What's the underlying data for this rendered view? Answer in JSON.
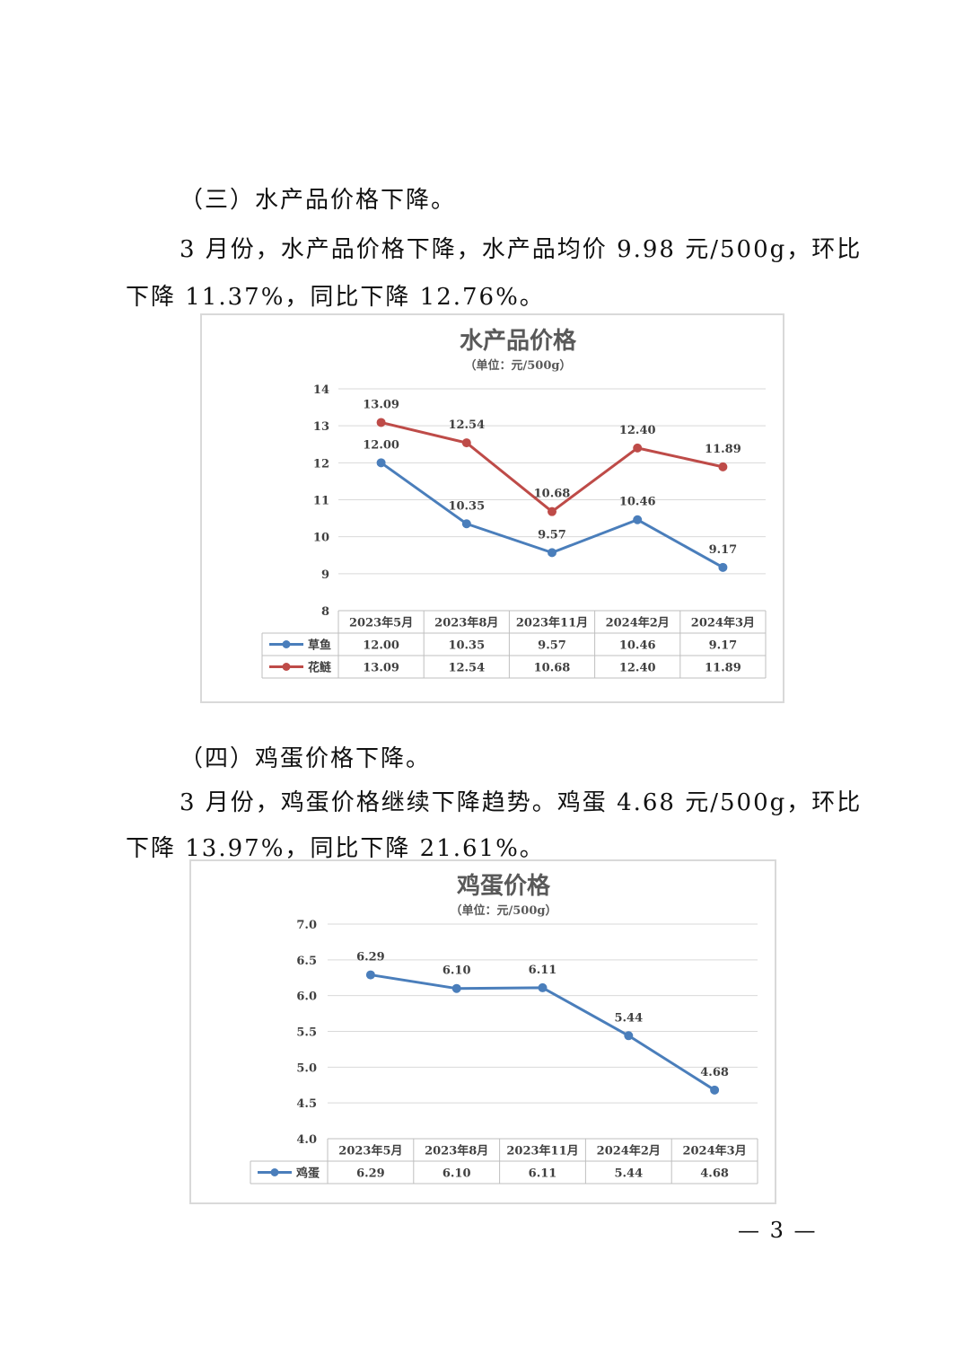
{
  "section3": {
    "heading": "（三）水产品价格下降。",
    "line1": "3 月份，水产品价格下降，水产品均价 9.98 元/500g，环比",
    "line2": "下降 11.37%，同比下降 12.76%。"
  },
  "section4": {
    "heading": "（四）鸡蛋价格下降。",
    "line1": "3 月份，鸡蛋价格继续下降趋势。鸡蛋 4.68 元/500g，环比",
    "line2": "下降 13.97%，同比下降 21.61%。"
  },
  "page_number": "— 3 —",
  "chart_data": [
    {
      "type": "line",
      "title": "水产品价格",
      "subtitle": "（单位：元/500g）",
      "categories": [
        "2023年5月",
        "2023年8月",
        "2023年11月",
        "2024年2月",
        "2024年3月"
      ],
      "ylim": [
        8,
        14
      ],
      "yticks": [
        "8",
        "9",
        "10",
        "11",
        "12",
        "13",
        "14"
      ],
      "grid": true,
      "legend": "data-table",
      "series": [
        {
          "name": "草鱼",
          "color": "#4a7ebb",
          "values": [
            12.0,
            10.35,
            9.57,
            10.46,
            9.17
          ],
          "labels": [
            "12.00",
            "10.35",
            "9.57",
            "10.46",
            "9.17"
          ]
        },
        {
          "name": "花鲢",
          "color": "#be4b48",
          "values": [
            13.09,
            12.54,
            10.68,
            12.4,
            11.89
          ],
          "labels": [
            "13.09",
            "12.54",
            "10.68",
            "12.40",
            "11.89"
          ]
        }
      ]
    },
    {
      "type": "line",
      "title": "鸡蛋价格",
      "subtitle": "（单位：元/500g）",
      "categories": [
        "2023年5月",
        "2023年8月",
        "2023年11月",
        "2024年2月",
        "2024年3月"
      ],
      "ylim": [
        4.0,
        7.0
      ],
      "yticks": [
        "4.0",
        "4.5",
        "5.0",
        "5.5",
        "6.0",
        "6.5",
        "7.0"
      ],
      "grid": true,
      "legend": "data-table",
      "series": [
        {
          "name": "鸡蛋",
          "color": "#4a7ebb",
          "values": [
            6.29,
            6.1,
            6.11,
            5.44,
            4.68
          ],
          "labels": [
            "6.29",
            "6.10",
            "6.11",
            "5.44",
            "4.68"
          ]
        }
      ]
    }
  ]
}
